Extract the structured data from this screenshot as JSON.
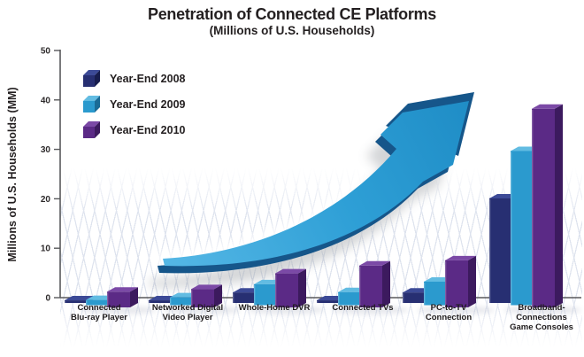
{
  "chart_data": {
    "type": "bar",
    "title": "Penetration of Connected CE Platforms",
    "subtitle": "(Millions of U.S. Households)",
    "ylabel": "Millions of U.S. Households (MM)",
    "ylim": [
      0,
      50
    ],
    "yticks": [
      0,
      10,
      20,
      30,
      40,
      50
    ],
    "legend_position": "upper-left",
    "grid": "perspective-floor",
    "style": "3d-bars-with-growth-arrow",
    "categories": [
      "Connected Blu-ray Player",
      "Networked Digital Video Player",
      "Whole-Home DVR",
      "Connected TVs",
      "PC-to-TV Connection",
      "Broadband-Connections Game Consoles"
    ],
    "category_label_lines": [
      [
        "Connected",
        "Blu-ray Player"
      ],
      [
        "Networked Digital",
        "Video Player"
      ],
      [
        "Whole-Home DVR"
      ],
      [
        "Connected TVs"
      ],
      [
        "PC-to-TV",
        "Connection"
      ],
      [
        "Broadband-",
        "Connections",
        "Game Consoles"
      ]
    ],
    "series": [
      {
        "name": "Year-End 2008",
        "values": [
          0.5,
          0.5,
          2,
          0.5,
          2,
          20
        ],
        "colors": {
          "front": "#272f72",
          "top": "#3c4a97",
          "side": "#171d4e"
        }
      },
      {
        "name": "Year-End 2009",
        "values": [
          1,
          1.5,
          4,
          2.5,
          4.5,
          29.5
        ],
        "colors": {
          "front": "#2b9ace",
          "top": "#62bce2",
          "side": "#1a6b96"
        }
      },
      {
        "name": "Year-End 2010",
        "values": [
          3,
          3.5,
          6.5,
          8,
          9,
          38
        ],
        "colors": {
          "front": "#5b2a86",
          "top": "#7b49a6",
          "side": "#3c1a5e"
        }
      }
    ],
    "decoration": {
      "growth_arrow": {
        "top_color": "#2e9fd6",
        "side_color": "#16568a",
        "meaning": "upward growth swoosh"
      }
    }
  }
}
